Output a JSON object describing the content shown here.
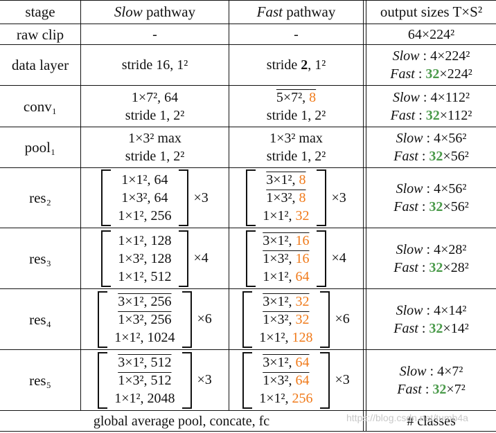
{
  "header": {
    "stage": "stage",
    "slow": "Slow",
    "slow_suffix": " pathway",
    "fast": "Fast",
    "fast_suffix": " pathway",
    "output": "output sizes T×S²"
  },
  "rows": {
    "raw_clip": {
      "stage": "raw clip",
      "slow": "-",
      "fast": "-",
      "out": "64×224²"
    },
    "data_layer": {
      "stage": "data layer",
      "slow": "stride 16, 1²",
      "fast_a": "stride ",
      "fast_b": "2",
      "fast_c": ", 1²",
      "out1a": "Slow",
      "out1b": " : 4×224²",
      "out2a": "Fast",
      "out2b": " : ",
      "out2c": "32",
      "out2d": "×224²"
    },
    "conv1": {
      "stage": "conv₁",
      "slow1": "1×7², 64",
      "slow2": "stride 1, 2²",
      "fast1a": "5×7², ",
      "fast1b": "8",
      "fast2": "stride 1, 2²",
      "out1a": "Slow",
      "out1b": " : 4×112²",
      "out2a": "Fast",
      "out2b": " : ",
      "out2c": "32",
      "out2d": "×112²"
    },
    "pool1": {
      "stage": "pool₁",
      "slow1": "1×3² max",
      "slow2": "stride 1, 2²",
      "fast1": "1×3² max",
      "fast2": "stride 1, 2²",
      "out1a": "Slow",
      "out1b": " : 4×56²",
      "out2a": "Fast",
      "out2b": " : ",
      "out2c": "32",
      "out2d": "×56²"
    },
    "res2": {
      "stage": "res₂",
      "s1": "1×1², 64",
      "s2": "1×3², 64",
      "s3": "1×1², 256",
      "srep": "×3",
      "f1a": "3×1², ",
      "f1b": "8",
      "f2a": "1×3², ",
      "f2b": "8",
      "f3a": "1×1², ",
      "f3b": "32",
      "frep": "×3",
      "out1a": "Slow",
      "out1b": " : 4×56²",
      "out2a": "Fast",
      "out2b": " : ",
      "out2c": "32",
      "out2d": "×56²"
    },
    "res3": {
      "stage": "res₃",
      "s1": "1×1², 128",
      "s2": "1×3², 128",
      "s3": "1×1², 512",
      "srep": "×4",
      "f1a": "3×1², ",
      "f1b": "16",
      "f2a": "1×3², ",
      "f2b": "16",
      "f3a": "1×1², ",
      "f3b": "64",
      "frep": "×4",
      "out1a": "Slow",
      "out1b": " : 4×28²",
      "out2a": "Fast",
      "out2b": " : ",
      "out2c": "32",
      "out2d": "×28²"
    },
    "res4": {
      "stage": "res₄",
      "s1": "3×1², 256",
      "s2": "1×3², 256",
      "s3": "1×1², 1024",
      "srep": "×6",
      "f1a": "3×1², ",
      "f1b": "32",
      "f2a": "1×3², ",
      "f2b": "32",
      "f3a": "1×1², ",
      "f3b": "128",
      "frep": "×6",
      "out1a": "Slow",
      "out1b": " : 4×14²",
      "out2a": "Fast",
      "out2b": " : ",
      "out2c": "32",
      "out2d": "×14²"
    },
    "res5": {
      "stage": "res₅",
      "s1": "3×1², 512",
      "s2": "1×3², 512",
      "s3": "1×1², 2048",
      "srep": "×3",
      "f1a": "3×1², ",
      "f1b": "64",
      "f2a": "1×3², ",
      "f2b": "64",
      "f3a": "1×1², ",
      "f3b": "256",
      "frep": "×3",
      "out1a": "Slow",
      "out1b": " : 4×7²",
      "out2a": "Fast",
      "out2b": " : ",
      "out2c": "32",
      "out2d": "×7²"
    },
    "final": {
      "text": "global average pool, concate, fc",
      "out": "# classes"
    }
  },
  "watermark": "https://blog.csdn.net/tumb4a",
  "colors": {
    "orange": "#f07a1a",
    "green": "#4a9a4a"
  }
}
